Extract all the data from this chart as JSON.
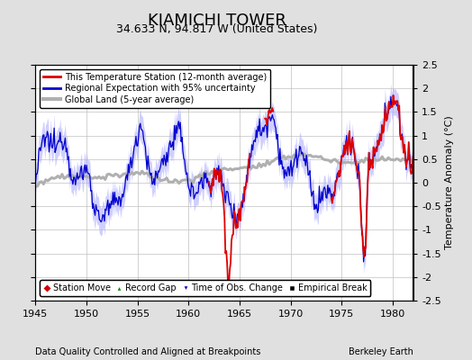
{
  "title": "KIAMICHI TOWER",
  "subtitle": "34.633 N, 94.817 W (United States)",
  "xlabel_left": "Data Quality Controlled and Aligned at Breakpoints",
  "xlabel_right": "Berkeley Earth",
  "ylabel_right": "Temperature Anomaly (°C)",
  "xlim": [
    1945,
    1982
  ],
  "ylim": [
    -2.5,
    2.5
  ],
  "yticks": [
    -2.5,
    -2,
    -1.5,
    -1,
    -0.5,
    0,
    0.5,
    1,
    1.5,
    2,
    2.5
  ],
  "xticks": [
    1945,
    1950,
    1955,
    1960,
    1965,
    1970,
    1975,
    1980
  ],
  "bg_color": "#e0e0e0",
  "plot_bg_color": "#ffffff",
  "grid_color": "#c0c0c0",
  "station_color": "#dd0000",
  "regional_color": "#0000cc",
  "regional_fill_color": "#b0b0ff",
  "global_color": "#b0b0b0",
  "legend_labels": [
    "This Temperature Station (12-month average)",
    "Regional Expectation with 95% uncertainty",
    "Global Land (5-year average)"
  ],
  "marker_legend": [
    "Station Move",
    "Record Gap",
    "Time of Obs. Change",
    "Empirical Break"
  ],
  "marker_colors": [
    "#cc0000",
    "#008800",
    "#0000cc",
    "#000000"
  ],
  "title_fontsize": 13,
  "subtitle_fontsize": 9,
  "axis_fontsize": 8,
  "tick_fontsize": 8
}
